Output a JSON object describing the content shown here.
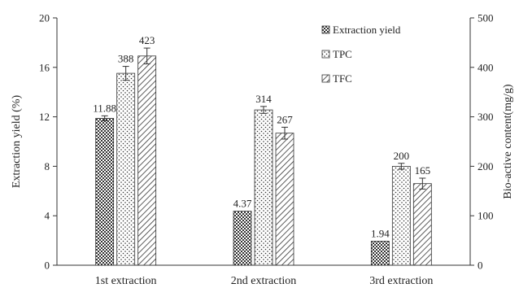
{
  "chart_data": {
    "type": "bar",
    "categories": [
      "1st extraction",
      "2nd extraction",
      "3rd extraction"
    ],
    "y_left": {
      "label": "Extraction  yield (%)",
      "range": [
        0,
        20
      ],
      "ticks": [
        "0",
        "4",
        "8",
        "12",
        "16",
        "20"
      ]
    },
    "y_right": {
      "label": "Bio-active  content(mg/g)",
      "range": [
        0,
        500
      ],
      "ticks": [
        "0",
        "100",
        "200",
        "300",
        "400",
        "500"
      ]
    },
    "series": [
      {
        "name": "Extraction yield",
        "axis": "left",
        "pattern": "crosshatch",
        "values": [
          11.88,
          4.37,
          1.94
        ],
        "labels": [
          "11.88",
          "4.37",
          "1.94"
        ],
        "error": [
          0.2,
          0,
          0
        ]
      },
      {
        "name": "TPC",
        "axis": "right",
        "pattern": "dots",
        "values": [
          388,
          314,
          200
        ],
        "labels": [
          "388",
          "314",
          "200"
        ],
        "error": [
          14,
          7,
          6
        ]
      },
      {
        "name": "TFC",
        "axis": "right",
        "pattern": "diagonal",
        "values": [
          423,
          267,
          165
        ],
        "labels": [
          "423",
          "267",
          "165"
        ],
        "error": [
          16,
          12,
          11
        ]
      }
    ],
    "legend": {
      "placement": "top-right"
    },
    "grid": false
  }
}
